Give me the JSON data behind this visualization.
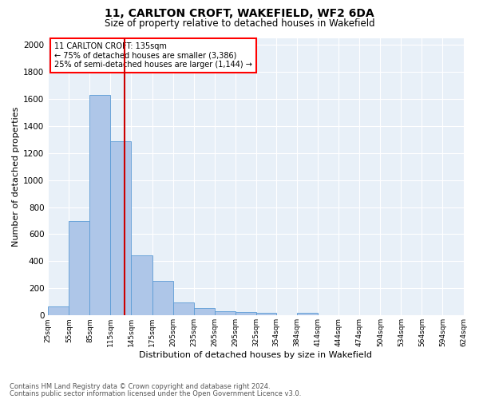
{
  "title1": "11, CARLTON CROFT, WAKEFIELD, WF2 6DA",
  "title2": "Size of property relative to detached houses in Wakefield",
  "xlabel": "Distribution of detached houses by size in Wakefield",
  "ylabel": "Number of detached properties",
  "annotation_line1": "11 CARLTON CROFT: 135sqm",
  "annotation_line2": "← 75% of detached houses are smaller (3,386)",
  "annotation_line3": "25% of semi-detached houses are larger (1,144) →",
  "property_size": 135,
  "bin_edges": [
    25,
    55,
    85,
    115,
    145,
    175,
    205,
    235,
    265,
    295,
    325,
    354,
    384,
    414,
    444,
    474,
    504,
    534,
    564,
    594,
    624
  ],
  "bin_heights": [
    68,
    700,
    1630,
    1285,
    445,
    253,
    95,
    55,
    32,
    27,
    18,
    0,
    18,
    0,
    0,
    0,
    0,
    0,
    0,
    0
  ],
  "bar_color": "#aec6e8",
  "bar_edge_color": "#5b9bd5",
  "bg_color": "#e8f0f8",
  "grid_color": "#ffffff",
  "vline_color": "#cc0000",
  "vline_x": 135,
  "ylim": [
    0,
    2050
  ],
  "yticks": [
    0,
    200,
    400,
    600,
    800,
    1000,
    1200,
    1400,
    1600,
    1800,
    2000
  ],
  "footnote1": "Contains HM Land Registry data © Crown copyright and database right 2024.",
  "footnote2": "Contains public sector information licensed under the Open Government Licence v3.0.",
  "fig_width": 6.0,
  "fig_height": 5.0,
  "dpi": 100
}
